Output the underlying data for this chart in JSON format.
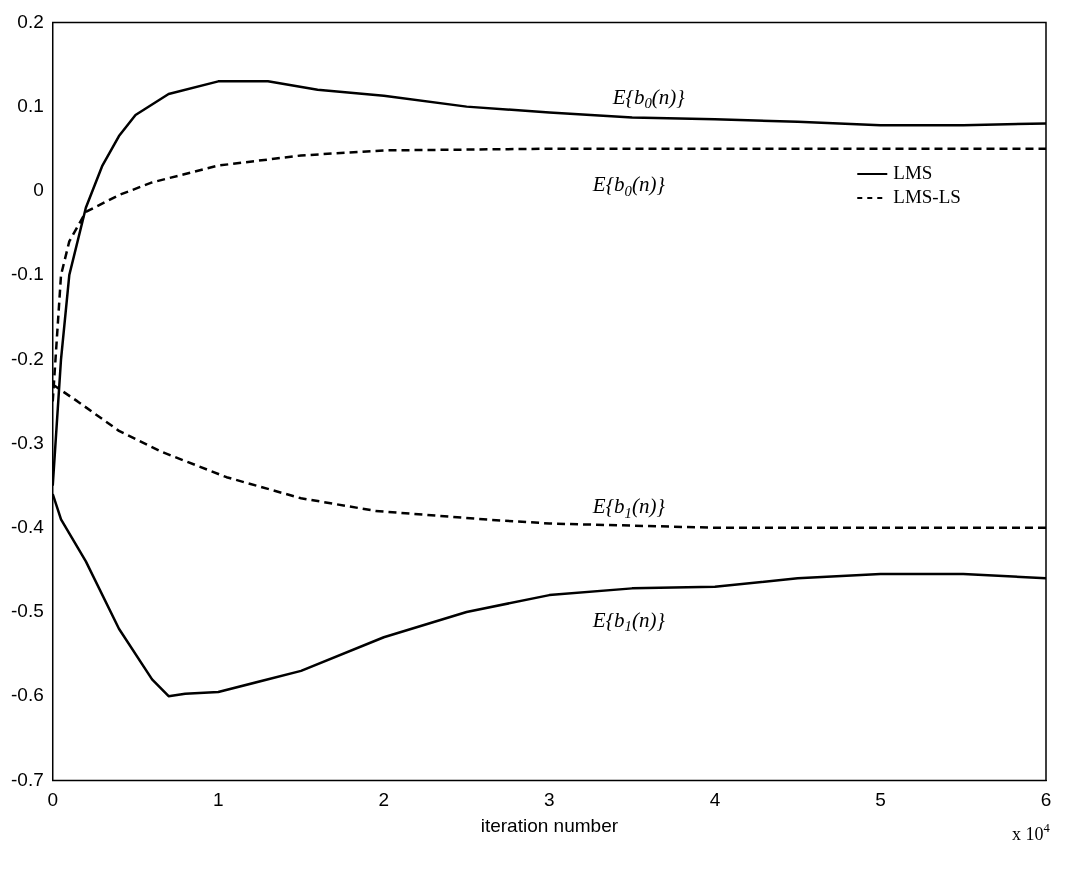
{
  "chart_data": {
    "type": "line",
    "xlabel": "iteration number",
    "xlim": [
      0,
      6
    ],
    "xticks": [
      0,
      1,
      2,
      3,
      4,
      5,
      6
    ],
    "ylim": [
      -0.7,
      0.2
    ],
    "yticks": [
      -0.7,
      -0.6,
      -0.5,
      -0.4,
      -0.3,
      -0.2,
      -0.1,
      0,
      0.1,
      0.2
    ],
    "legend": "top right",
    "marker": "none",
    "series": [
      {
        "name": "LMS",
        "color": "#000000",
        "line_style": "solid",
        "x": [
          0,
          0.05,
          0.1,
          0.2,
          0.3,
          0.4,
          0.5,
          0.7,
          1.0,
          1.3,
          1.6,
          2.0,
          2.5,
          3.0,
          3.5,
          4.0,
          4.5,
          5.0,
          5.5,
          6.0
        ],
        "values": [
          -0.35,
          -0.2,
          -0.1,
          -0.02,
          0.03,
          0.065,
          0.09,
          0.115,
          0.13,
          0.13,
          0.12,
          0.113,
          0.1,
          0.093,
          0.087,
          0.085,
          0.082,
          0.078,
          0.078,
          0.08
        ]
      },
      {
        "name": "LMS-LS",
        "color": "#000000",
        "line_style": "dashed",
        "x": [
          0,
          0.05,
          0.1,
          0.2,
          0.4,
          0.6,
          0.8,
          1.0,
          1.5,
          2.0,
          3.0,
          4.0,
          5.0,
          6.0
        ],
        "values": [
          -0.25,
          -0.1,
          -0.06,
          -0.025,
          -0.005,
          0.01,
          0.02,
          0.03,
          0.042,
          0.048,
          0.05,
          0.05,
          0.05,
          0.05
        ]
      },
      {
        "color": "#000000",
        "line_style": "dashed",
        "x": [
          0,
          0.15,
          0.4,
          0.66,
          1.05,
          1.5,
          1.95,
          2.6,
          3.0,
          4.0,
          5.0,
          6.0
        ],
        "values": [
          -0.23,
          -0.25,
          -0.285,
          -0.31,
          -0.34,
          -0.365,
          -0.38,
          -0.39,
          -0.395,
          -0.4,
          -0.4,
          -0.4
        ]
      },
      {
        "color": "#000000",
        "line_style": "solid",
        "x": [
          0,
          0.05,
          0.2,
          0.4,
          0.6,
          0.7,
          0.8,
          1.0,
          1.5,
          2.0,
          2.5,
          3.0,
          3.5,
          4.0,
          4.5,
          5.0,
          5.5,
          6.0
        ],
        "values": [
          -0.36,
          -0.39,
          -0.44,
          -0.52,
          -0.58,
          -0.6,
          -0.597,
          -0.595,
          -0.57,
          -0.53,
          -0.5,
          -0.48,
          -0.472,
          -0.47,
          -0.46,
          -0.455,
          -0.455,
          -0.46
        ]
      }
    ],
    "annotations": [
      "E{b$_{0}$(n)}",
      "E{b$_{0}$(n)}",
      "E{b$_{1}$(n)}",
      "E{b$_{1}$(n)}",
      "x 10$^{4}$"
    ]
  }
}
